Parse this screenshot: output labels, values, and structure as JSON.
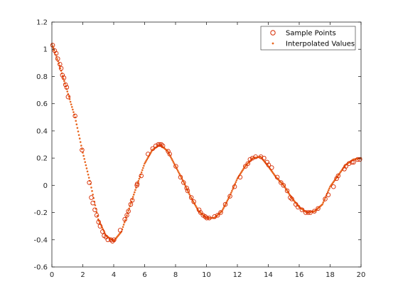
{
  "chart_data": {
    "type": "scatter",
    "title": "",
    "xlabel": "",
    "ylabel": "",
    "xlim": [
      0,
      20
    ],
    "ylim": [
      -0.6,
      1.2
    ],
    "xticks": [
      0,
      2,
      4,
      6,
      8,
      10,
      12,
      14,
      16,
      18,
      20
    ],
    "yticks": [
      -0.6,
      -0.4,
      -0.2,
      0,
      0.2,
      0.4,
      0.6,
      0.8,
      1,
      1.2
    ],
    "xtick_labels": [
      "0",
      "2",
      "4",
      "6",
      "8",
      "10",
      "12",
      "14",
      "16",
      "18",
      "20"
    ],
    "ytick_labels": [
      "-0.6",
      "-0.4",
      "-0.2",
      "0",
      "0.2",
      "0.4",
      "0.6",
      "0.8",
      "1",
      "1.2"
    ],
    "grid": false,
    "legend": {
      "position": "top-right",
      "entries": [
        "Sample Points",
        "Interpolated Values"
      ]
    },
    "colors": {
      "sample_points": "#d62a00",
      "interpolated": "#e8651e",
      "axes": "#262626"
    },
    "series": [
      {
        "name": "Sample Points",
        "marker": "circle-open",
        "x": [
          0.05,
          0.18,
          0.28,
          0.38,
          0.52,
          0.6,
          0.68,
          0.78,
          0.88,
          0.96,
          1.05,
          1.5,
          1.95,
          2.42,
          2.55,
          2.65,
          2.78,
          2.9,
          3.02,
          3.12,
          3.28,
          3.38,
          3.5,
          3.62,
          3.82,
          3.92,
          4.02,
          4.42,
          4.72,
          4.85,
          4.95,
          5.1,
          5.2,
          5.5,
          5.52,
          5.78,
          6.22,
          6.52,
          6.72,
          6.88,
          6.98,
          7.08,
          7.18,
          7.52,
          7.62,
          8.02,
          8.32,
          8.52,
          8.72,
          8.78,
          9.02,
          9.18,
          9.52,
          9.62,
          9.78,
          9.92,
          10.02,
          10.18,
          10.52,
          10.72,
          10.92,
          11.22,
          11.52,
          11.82,
          12.18,
          12.52,
          12.68,
          12.82,
          12.98,
          13.18,
          13.52,
          13.72,
          13.92,
          14.02,
          14.22,
          14.58,
          14.82,
          14.98,
          15.22,
          15.42,
          15.52,
          15.78,
          15.92,
          16.18,
          16.42,
          16.58,
          16.72,
          16.98,
          17.22,
          17.68,
          17.88,
          18.22,
          18.42,
          18.52,
          18.92,
          19.02,
          19.22,
          19.42,
          19.52,
          19.78,
          19.92
        ],
        "y": [
          1.03,
          0.99,
          0.97,
          0.93,
          0.89,
          0.86,
          0.81,
          0.79,
          0.74,
          0.72,
          0.65,
          0.51,
          0.26,
          0.02,
          -0.09,
          -0.13,
          -0.18,
          -0.22,
          -0.27,
          -0.3,
          -0.34,
          -0.37,
          -0.38,
          -0.4,
          -0.4,
          -0.41,
          -0.4,
          -0.33,
          -0.25,
          -0.22,
          -0.19,
          -0.14,
          -0.11,
          0.0,
          0.01,
          0.07,
          0.23,
          0.27,
          0.29,
          0.3,
          0.3,
          0.3,
          0.29,
          0.25,
          0.23,
          0.14,
          0.06,
          0.02,
          -0.02,
          -0.04,
          -0.09,
          -0.12,
          -0.18,
          -0.2,
          -0.22,
          -0.23,
          -0.24,
          -0.24,
          -0.23,
          -0.22,
          -0.2,
          -0.14,
          -0.08,
          -0.01,
          0.06,
          0.14,
          0.16,
          0.19,
          0.2,
          0.21,
          0.21,
          0.2,
          0.17,
          0.15,
          0.13,
          0.06,
          0.02,
          0.0,
          -0.04,
          -0.09,
          -0.1,
          -0.14,
          -0.16,
          -0.18,
          -0.2,
          -0.2,
          -0.2,
          -0.19,
          -0.17,
          -0.1,
          -0.07,
          -0.01,
          0.05,
          0.07,
          0.12,
          0.14,
          0.16,
          0.17,
          0.17,
          0.19,
          0.19
        ]
      },
      {
        "name": "Interpolated Values",
        "marker": "dot",
        "x_range": [
          0,
          20
        ],
        "n_points": 401,
        "x": [
          0,
          0.5,
          1,
          1.5,
          2,
          2.5,
          3,
          3.5,
          4,
          4.5,
          5,
          5.5,
          6,
          6.5,
          7,
          7.5,
          8,
          8.5,
          9,
          9.5,
          10,
          10.5,
          11,
          11.5,
          12,
          12.5,
          13,
          13.5,
          14,
          14.5,
          15,
          15.5,
          16,
          16.5,
          17,
          17.5,
          18,
          18.5,
          19,
          19.5,
          20
        ],
        "y": [
          1.04,
          0.88,
          0.69,
          0.5,
          0.24,
          0.01,
          -0.25,
          -0.37,
          -0.41,
          -0.34,
          -0.17,
          0.0,
          0.16,
          0.26,
          0.3,
          0.25,
          0.14,
          0.03,
          -0.09,
          -0.19,
          -0.24,
          -0.24,
          -0.19,
          -0.08,
          0.05,
          0.14,
          0.2,
          0.21,
          0.14,
          0.06,
          0.0,
          -0.09,
          -0.16,
          -0.2,
          -0.19,
          -0.14,
          -0.01,
          0.07,
          0.15,
          0.19,
          0.2
        ]
      }
    ]
  }
}
